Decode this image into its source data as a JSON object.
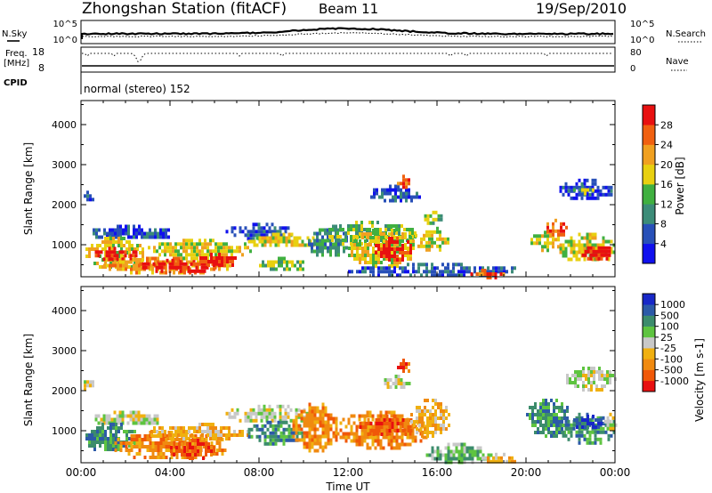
{
  "header": {
    "station": "Zhongshan Station (fitACF)",
    "beam": "Beam 11",
    "date": "19/Sep/2010"
  },
  "strip": {
    "nsky_label": "N.Sky",
    "nsky_ticks": [
      "10^5",
      "10^0"
    ],
    "nsearch_label": "N.Search",
    "nsearch_ticks": [
      "10^5",
      "10^0"
    ],
    "freq_label": "Freq.",
    "freq_unit": "[MHz]",
    "freq_ticks": [
      "18",
      "8"
    ],
    "nave_label": "Nave",
    "nave_ticks": [
      "80",
      "0"
    ],
    "cpid_label": "CPID",
    "cpid_text": "normal (stereo) 152"
  },
  "colors": {
    "power": [
      "#1010ee",
      "#2850b8",
      "#3c8c78",
      "#40b040",
      "#e8d010",
      "#f0a020",
      "#f06010",
      "#e81010"
    ],
    "velocity": [
      "#1828c8",
      "#2c5aa8",
      "#3c8c6c",
      "#5ec440",
      "#c8c8c8",
      "#f0b010",
      "#f08a10",
      "#f05808",
      "#e81010"
    ]
  },
  "chart_data": [
    {
      "type": "heatmap",
      "panel": "power",
      "ylabel": "Slant Range [km]",
      "ylim": [
        200,
        4600
      ],
      "yticks": [
        1000,
        2000,
        3000,
        4000
      ],
      "xlim": [
        0,
        24
      ],
      "colorbar_label": "Power [dB]",
      "colorbar_ticks": [
        "4",
        "8",
        "12",
        "16",
        "20",
        "24",
        "28"
      ],
      "regions": [
        {
          "x": [
            0.0,
            0.5
          ],
          "y": [
            2100,
            2350
          ],
          "level": 1
        },
        {
          "x": [
            0.4,
            4.0
          ],
          "y": [
            1150,
            1500
          ],
          "level": 1
        },
        {
          "x": [
            0.2,
            2.8
          ],
          "y": [
            450,
            1200
          ],
          "level": 4
        },
        {
          "x": [
            0.5,
            2.5
          ],
          "y": [
            650,
            950
          ],
          "level": 7
        },
        {
          "x": [
            1.0,
            6.8
          ],
          "y": [
            320,
            700
          ],
          "level": 5
        },
        {
          "x": [
            2.5,
            6.2
          ],
          "y": [
            350,
            650
          ],
          "level": 7
        },
        {
          "x": [
            3.0,
            7.6
          ],
          "y": [
            700,
            1150
          ],
          "level": 4
        },
        {
          "x": [
            5.2,
            7.0
          ],
          "y": [
            500,
            800
          ],
          "level": 7
        },
        {
          "x": [
            6.5,
            9.5
          ],
          "y": [
            1150,
            1550
          ],
          "level": 1
        },
        {
          "x": [
            7.5,
            10.5
          ],
          "y": [
            950,
            1300
          ],
          "level": 4
        },
        {
          "x": [
            8.0,
            10.0
          ],
          "y": [
            350,
            700
          ],
          "level": 3
        },
        {
          "x": [
            10.2,
            12.0
          ],
          "y": [
            700,
            1500
          ],
          "level": 2
        },
        {
          "x": [
            11.0,
            15.0
          ],
          "y": [
            1000,
            1600
          ],
          "level": 3
        },
        {
          "x": [
            12.0,
            15.0
          ],
          "y": [
            500,
            1400
          ],
          "level": 4
        },
        {
          "x": [
            13.2,
            14.8
          ],
          "y": [
            650,
            1200
          ],
          "level": 7
        },
        {
          "x": [
            13.0,
            15.2
          ],
          "y": [
            2100,
            2500
          ],
          "level": 1
        },
        {
          "x": [
            14.2,
            14.7
          ],
          "y": [
            2400,
            2750
          ],
          "level": 6
        },
        {
          "x": [
            15.0,
            16.5
          ],
          "y": [
            900,
            1450
          ],
          "level": 4
        },
        {
          "x": [
            15.3,
            16.2
          ],
          "y": [
            1500,
            1850
          ],
          "level": 3
        },
        {
          "x": [
            12.0,
            19.5
          ],
          "y": [
            250,
            550
          ],
          "level": 1
        },
        {
          "x": [
            17.5,
            19.0
          ],
          "y": [
            220,
            400
          ],
          "level": 6
        },
        {
          "x": [
            20.2,
            21.5
          ],
          "y": [
            900,
            1350
          ],
          "level": 4
        },
        {
          "x": [
            20.8,
            21.8
          ],
          "y": [
            1250,
            1650
          ],
          "level": 6
        },
        {
          "x": [
            21.5,
            24.0
          ],
          "y": [
            600,
            1300
          ],
          "level": 4
        },
        {
          "x": [
            22.5,
            23.8
          ],
          "y": [
            650,
            1050
          ],
          "level": 7
        },
        {
          "x": [
            21.5,
            23.8
          ],
          "y": [
            2150,
            2650
          ],
          "level": 1
        },
        {
          "x": [
            22.0,
            23.0
          ],
          "y": [
            2300,
            2500
          ],
          "level": 3
        }
      ]
    },
    {
      "type": "heatmap",
      "panel": "velocity",
      "ylabel": "Slant Range [km]",
      "xlabel": "Time UT",
      "ylim": [
        200,
        4600
      ],
      "yticks": [
        1000,
        2000,
        3000,
        4000
      ],
      "xlim": [
        0,
        24
      ],
      "xticks": [
        "00:00",
        "04:00",
        "08:00",
        "12:00",
        "16:00",
        "20:00",
        "00:00"
      ],
      "colorbar_label": "Velocity [m s-1]",
      "colorbar_ticks": [
        "1000",
        "500",
        "100",
        "25",
        "-25",
        "-100",
        "-500",
        "-1000"
      ],
      "regions": [
        {
          "x": [
            0.0,
            0.5
          ],
          "y": [
            2050,
            2350
          ],
          "level": 4
        },
        {
          "x": [
            0.5,
            3.5
          ],
          "y": [
            1150,
            1500
          ],
          "level": 4
        },
        {
          "x": [
            0.2,
            2.5
          ],
          "y": [
            500,
            1200
          ],
          "level": 2
        },
        {
          "x": [
            1.5,
            6.5
          ],
          "y": [
            300,
            1000
          ],
          "level": 6
        },
        {
          "x": [
            3.0,
            7.5
          ],
          "y": [
            800,
            1200
          ],
          "level": 5
        },
        {
          "x": [
            4.0,
            6.0
          ],
          "y": [
            350,
            800
          ],
          "level": 7
        },
        {
          "x": [
            6.5,
            10.5
          ],
          "y": [
            1250,
            1650
          ],
          "level": 4
        },
        {
          "x": [
            7.5,
            10.0
          ],
          "y": [
            700,
            1250
          ],
          "level": 2
        },
        {
          "x": [
            9.5,
            11.5
          ],
          "y": [
            500,
            1700
          ],
          "level": 6
        },
        {
          "x": [
            11.5,
            15.5
          ],
          "y": [
            600,
            1500
          ],
          "level": 6
        },
        {
          "x": [
            12.5,
            15.0
          ],
          "y": [
            900,
            1400
          ],
          "level": 7
        },
        {
          "x": [
            14.8,
            16.5
          ],
          "y": [
            900,
            1800
          ],
          "level": 5
        },
        {
          "x": [
            13.5,
            14.8
          ],
          "y": [
            2100,
            2400
          ],
          "level": 4
        },
        {
          "x": [
            14.2,
            14.7
          ],
          "y": [
            2450,
            2800
          ],
          "level": 7
        },
        {
          "x": [
            15.5,
            18.5
          ],
          "y": [
            250,
            700
          ],
          "level": 3
        },
        {
          "x": [
            18.0,
            19.5
          ],
          "y": [
            220,
            450
          ],
          "level": 5
        },
        {
          "x": [
            20.0,
            22.0
          ],
          "y": [
            900,
            1800
          ],
          "level": 2
        },
        {
          "x": [
            21.5,
            24.0
          ],
          "y": [
            700,
            1450
          ],
          "level": 2
        },
        {
          "x": [
            22.0,
            23.5
          ],
          "y": [
            1100,
            1400
          ],
          "level": 1
        },
        {
          "x": [
            21.8,
            24.0
          ],
          "y": [
            2050,
            2600
          ],
          "level": 4
        },
        {
          "x": [
            23.5,
            24.0
          ],
          "y": [
            1000,
            1450
          ],
          "level": 4
        }
      ]
    }
  ]
}
